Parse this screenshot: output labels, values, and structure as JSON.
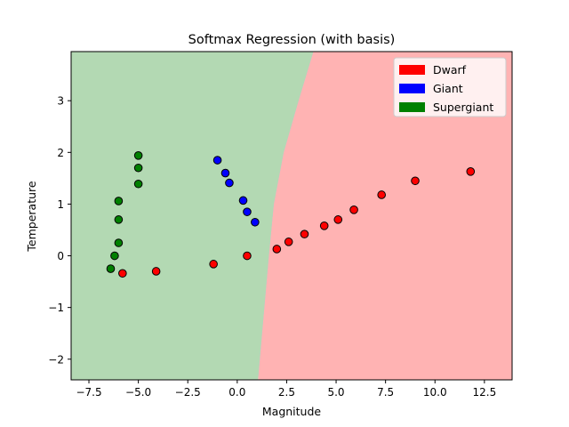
{
  "chart_data": {
    "type": "scatter",
    "title": "Softmax Regression (with basis)",
    "xlabel": "Magnitude",
    "ylabel": "Temperature",
    "xlim": [
      -8.4,
      13.9
    ],
    "ylim": [
      -2.4,
      3.95
    ],
    "xticks": [
      -7.5,
      -5.0,
      -2.5,
      0.0,
      2.5,
      5.0,
      7.5,
      10.0,
      12.5
    ],
    "xtick_labels": [
      "−7.5",
      "−5.0",
      "−2.5",
      "0.0",
      "2.5",
      "5.0",
      "7.5",
      "10.0",
      "12.5"
    ],
    "yticks": [
      -2,
      -1,
      0,
      1,
      2,
      3
    ],
    "ytick_labels": [
      "−2",
      "−1",
      "0",
      "1",
      "2",
      "3"
    ],
    "grid": false,
    "legend_position": "top-right",
    "legend": [
      {
        "label": "Dwarf",
        "color": "#ff0000"
      },
      {
        "label": "Giant",
        "color": "#0000ff"
      },
      {
        "label": "Supergiant",
        "color": "#008000"
      }
    ],
    "regions": [
      {
        "class": "Supergiant",
        "color": "#b3d9b3"
      },
      {
        "class": "Giant",
        "color": "#b3b3ff"
      },
      {
        "class": "Dwarf",
        "color": "#ffb3b3"
      }
    ],
    "boundaries": {
      "supergiant_giant": [
        [
          1.05,
          -2.4
        ],
        [
          1.6,
          0.0
        ],
        [
          1.85,
          1.0
        ],
        [
          2.35,
          2.0
        ],
        [
          3.1,
          3.0
        ],
        [
          3.85,
          3.95
        ]
      ],
      "giant_dwarf": [
        [
          1.05,
          -2.4
        ],
        [
          1.3,
          0.0
        ],
        [
          1.5,
          1.0
        ],
        [
          1.85,
          2.0
        ],
        [
          2.35,
          3.0
        ],
        [
          2.0,
          3.95
        ]
      ]
    },
    "series": [
      {
        "name": "Dwarf",
        "color": "#ff0000",
        "points": [
          [
            -5.8,
            -0.34
          ],
          [
            -4.1,
            -0.3
          ],
          [
            -1.2,
            -0.16
          ],
          [
            0.5,
            0.0
          ],
          [
            2.0,
            0.13
          ],
          [
            2.6,
            0.27
          ],
          [
            3.4,
            0.42
          ],
          [
            4.4,
            0.58
          ],
          [
            5.1,
            0.7
          ],
          [
            5.9,
            0.89
          ],
          [
            7.3,
            1.18
          ],
          [
            9.0,
            1.45
          ],
          [
            11.8,
            1.63
          ]
        ]
      },
      {
        "name": "Giant",
        "color": "#0000ff",
        "points": [
          [
            -1.0,
            1.85
          ],
          [
            -0.6,
            1.6
          ],
          [
            -0.4,
            1.41
          ],
          [
            0.3,
            1.07
          ],
          [
            0.5,
            0.85
          ],
          [
            0.9,
            0.65
          ]
        ]
      },
      {
        "name": "Supergiant",
        "color": "#008000",
        "points": [
          [
            -5.0,
            1.94
          ],
          [
            -5.0,
            1.7
          ],
          [
            -5.0,
            1.39
          ],
          [
            -6.0,
            1.06
          ],
          [
            -6.0,
            0.7
          ],
          [
            -6.0,
            0.25
          ],
          [
            -6.2,
            0.0
          ],
          [
            -6.4,
            -0.25
          ]
        ]
      }
    ]
  }
}
